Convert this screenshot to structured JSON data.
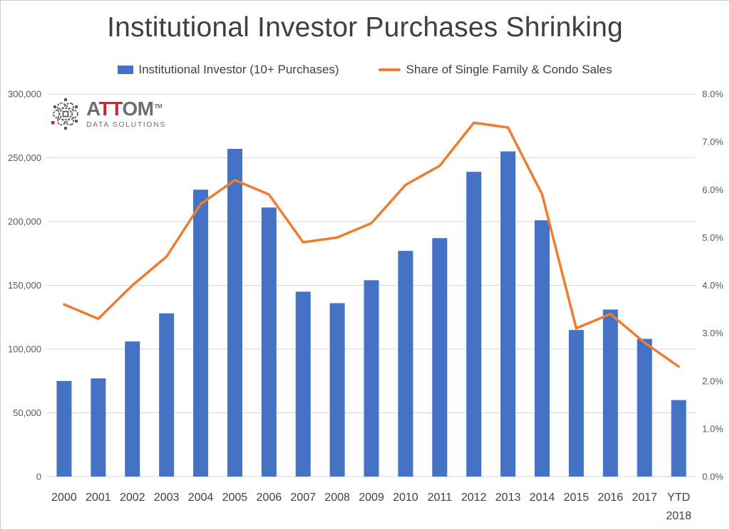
{
  "title": "Institutional Investor Purchases Shrinking",
  "logo": {
    "brand_gray1": "A",
    "brand_red": "TT",
    "brand_gray2": "OM",
    "trademark": "TM",
    "subtitle": "DATA SOLUTIONS"
  },
  "legend": {
    "bar": {
      "label": "Institutional Investor (10+ Purchases)",
      "color": "#4472C4"
    },
    "line": {
      "label": "Share of Single Family & Condo Sales",
      "color": "#ED7D31"
    }
  },
  "chart_data": {
    "type": "bar",
    "title": "Institutional Investor Purchases Shrinking",
    "categories": [
      "2000",
      "2001",
      "2002",
      "2003",
      "2004",
      "2005",
      "2006",
      "2007",
      "2008",
      "2009",
      "2010",
      "2011",
      "2012",
      "2013",
      "2014",
      "2015",
      "2016",
      "2017",
      "YTD 2018"
    ],
    "series": [
      {
        "name": "Institutional Investor (10+ Purchases)",
        "type": "bar",
        "axis": "left",
        "color": "#4472C4",
        "values": [
          75000,
          77000,
          106000,
          128000,
          225000,
          257000,
          211000,
          145000,
          136000,
          154000,
          177000,
          187000,
          239000,
          255000,
          201000,
          115000,
          131000,
          108000,
          60000
        ]
      },
      {
        "name": "Share of Single Family & Condo Sales",
        "type": "line",
        "axis": "right",
        "color": "#ED7D31",
        "values": [
          3.6,
          3.3,
          4.0,
          4.6,
          5.7,
          6.2,
          5.9,
          4.9,
          5.0,
          5.3,
          6.1,
          6.5,
          7.4,
          7.3,
          5.9,
          3.1,
          3.4,
          2.8,
          2.3
        ]
      }
    ],
    "left_axis": {
      "min": 0,
      "max": 300000,
      "step": 50000,
      "tick_labels": [
        "0",
        "50,000",
        "100,000",
        "150,000",
        "200,000",
        "250,000",
        "300,000"
      ]
    },
    "right_axis": {
      "min": 0,
      "max": 8,
      "step": 1,
      "tick_labels": [
        "0.0%",
        "1.0%",
        "2.0%",
        "3.0%",
        "4.0%",
        "5.0%",
        "6.0%",
        "7.0%",
        "8.0%"
      ]
    },
    "grid": true,
    "legend_position": "top",
    "gridline_color": "#d9d9d9",
    "axis_label_color": "#595959",
    "category_label_color": "#404040"
  }
}
